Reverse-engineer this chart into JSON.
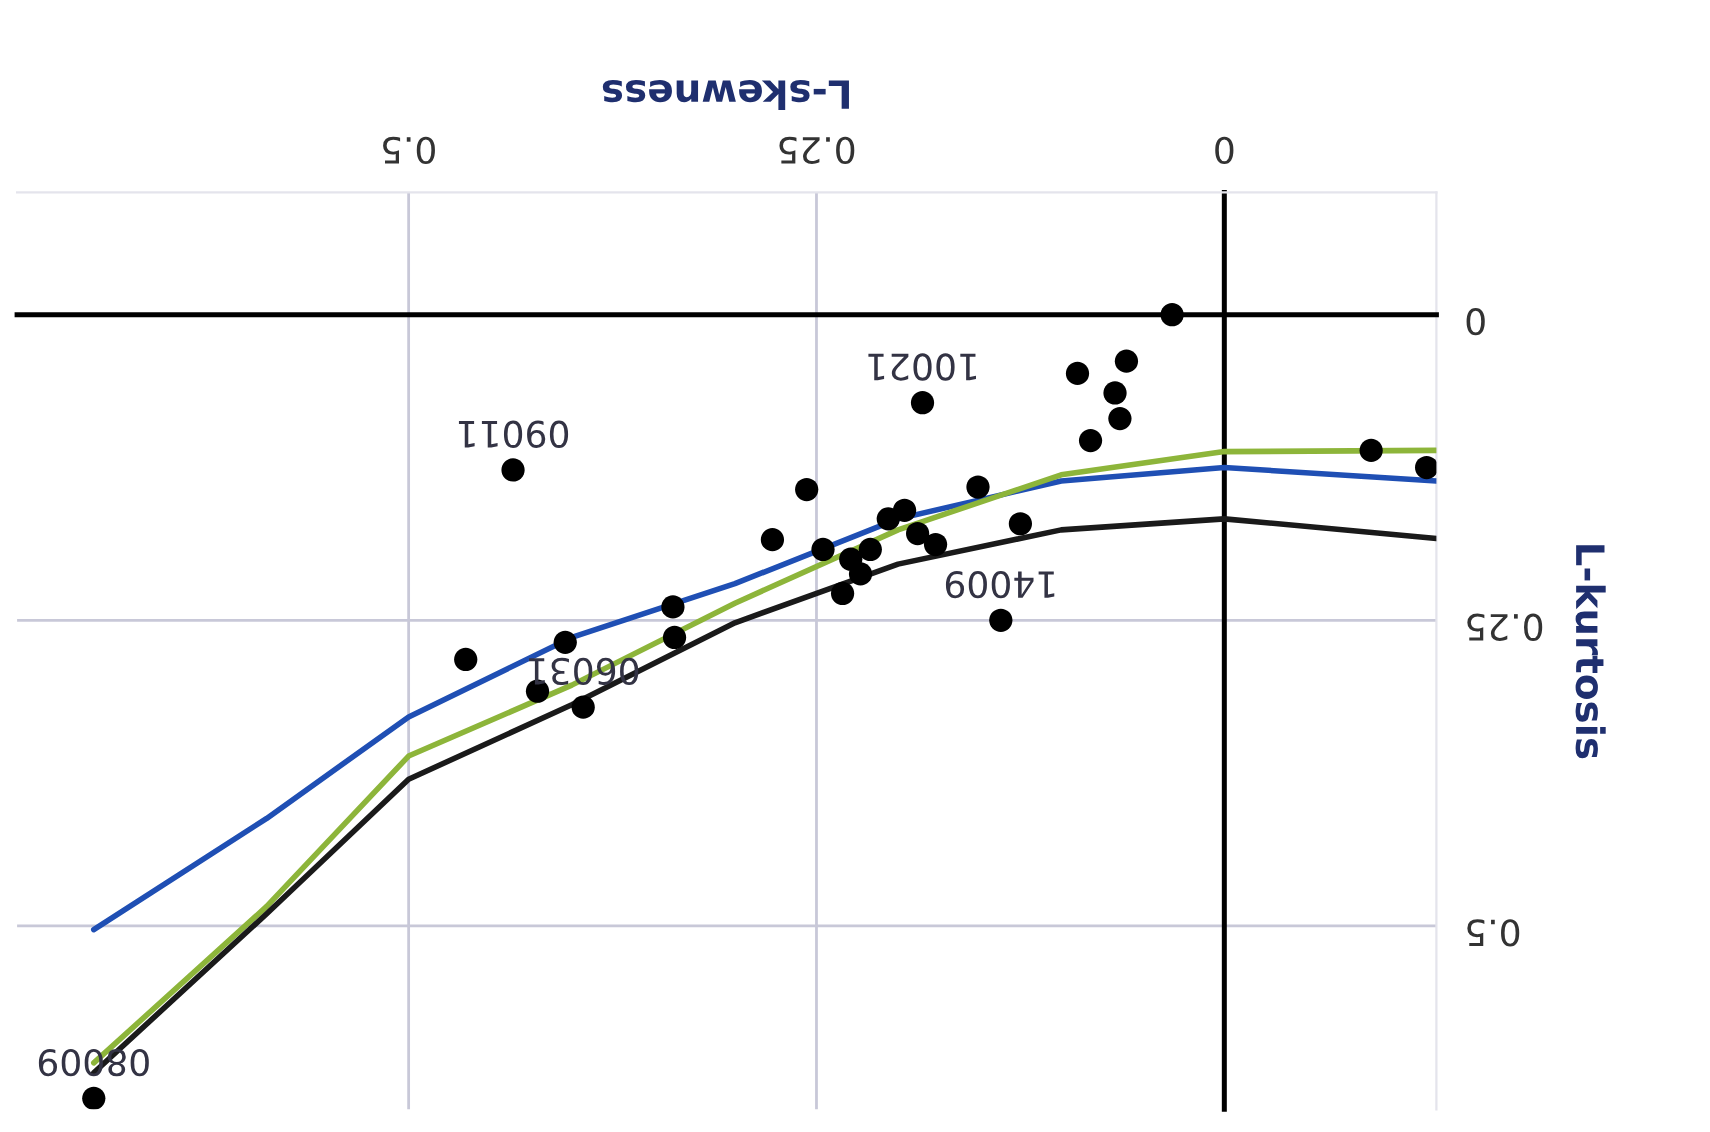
{
  "chart_data": {
    "type": "scatter",
    "xlabel": "L-skewness",
    "ylabel": "L-kurtosis",
    "xlim": [
      0.74,
      -0.13
    ],
    "ylim": [
      0.65,
      -0.1
    ],
    "xticks": [
      0,
      0.25,
      0.5
    ],
    "yticks": [
      0,
      0.25,
      0.5
    ],
    "grid": true,
    "legend": false,
    "series": [
      {
        "marker": "circle",
        "color": "#000000",
        "x": [
          0.693,
          0.436,
          0.465,
          0.404,
          0.421,
          0.393,
          0.338,
          0.337,
          0.256,
          0.277,
          0.246,
          0.229,
          0.217,
          0.206,
          0.196,
          0.188,
          0.177,
          0.185,
          0.151,
          0.137,
          0.125,
          0.09,
          0.082,
          0.067,
          0.064,
          0.06,
          0.032,
          -0.09,
          -0.124,
          0.223,
          0.234
        ],
        "values": [
          0.641,
          0.127,
          0.282,
          0.268,
          0.308,
          0.321,
          0.239,
          0.264,
          0.143,
          0.184,
          0.192,
          0.2,
          0.192,
          0.167,
          0.16,
          0.179,
          0.188,
          0.072,
          0.141,
          0.25,
          0.171,
          0.048,
          0.103,
          0.064,
          0.085,
          0.038,
          0.0,
          0.111,
          0.125,
          0.212,
          0.228
        ]
      },
      {
        "type": "line",
        "color": "#1f4fb4",
        "x": [
          0.693,
          0.587,
          0.5,
          0.4,
          0.3,
          0.2,
          0.1,
          0,
          -0.13
        ],
        "values": [
          0.503,
          0.412,
          0.329,
          0.264,
          0.22,
          0.167,
          0.136,
          0.125,
          0.136
        ]
      },
      {
        "type": "line",
        "color": "#8db53a",
        "x": [
          0.693,
          0.587,
          0.5,
          0.4,
          0.3,
          0.2,
          0.1,
          0,
          -0.13
        ],
        "values": [
          0.612,
          0.484,
          0.361,
          0.303,
          0.236,
          0.176,
          0.131,
          0.112,
          0.111
        ]
      },
      {
        "type": "line",
        "color": "#1a1a1a",
        "x": [
          0.693,
          0.587,
          0.5,
          0.4,
          0.3,
          0.2,
          0.1,
          0,
          -0.13
        ],
        "values": [
          0.62,
          0.49,
          0.38,
          0.319,
          0.252,
          0.204,
          0.176,
          0.167,
          0.183
        ]
      }
    ],
    "annotations": [
      {
        "text": "08009",
        "x": 0.693,
        "y": 0.641
      },
      {
        "text": "09011",
        "x": 0.436,
        "y": 0.127
      },
      {
        "text": "06031",
        "x": 0.393,
        "y": 0.321
      },
      {
        "text": "14009",
        "x": 0.137,
        "y": 0.25
      },
      {
        "text": "10021",
        "x": 0.185,
        "y": 0.072
      }
    ]
  }
}
